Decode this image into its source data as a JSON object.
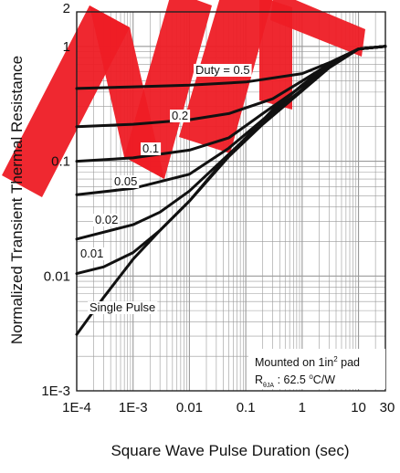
{
  "chart_data": {
    "type": "line",
    "xlabel": "Square Wave Pulse Duration (sec)",
    "ylabel": "Normalized Transient Thermal Resistance",
    "x_scale": "log",
    "y_scale": "log",
    "xlim": [
      0.0001,
      30
    ],
    "ylim": [
      0.001,
      2
    ],
    "grid": true,
    "x_ticks": [
      {
        "value": 0.0001,
        "label": "1E-4"
      },
      {
        "value": 0.001,
        "label": "1E-3"
      },
      {
        "value": 0.01,
        "label": "0.01"
      },
      {
        "value": 0.1,
        "label": "0.1"
      },
      {
        "value": 1,
        "label": "1"
      },
      {
        "value": 10,
        "label": "10"
      },
      {
        "value": 30,
        "label": "30"
      }
    ],
    "y_ticks": [
      {
        "value": 0.001,
        "label": "1E-3"
      },
      {
        "value": 0.01,
        "label": "0.01"
      },
      {
        "value": 0.1,
        "label": "0.1"
      },
      {
        "value": 1,
        "label": "1"
      },
      {
        "value": 2,
        "label": "2"
      }
    ],
    "series": [
      {
        "name": "Duty = 0.5",
        "x": [
          0.0001,
          0.001,
          0.01,
          0.1,
          1,
          3,
          10,
          30
        ],
        "y": [
          0.43,
          0.445,
          0.46,
          0.49,
          0.58,
          0.72,
          0.95,
          1.0
        ]
      },
      {
        "name": "0.2",
        "x": [
          0.0001,
          0.001,
          0.01,
          0.05,
          0.3,
          1,
          3,
          10,
          30
        ],
        "y": [
          0.2,
          0.21,
          0.23,
          0.26,
          0.35,
          0.5,
          0.7,
          0.95,
          1.0
        ]
      },
      {
        "name": "0.1",
        "x": [
          0.0001,
          0.001,
          0.01,
          0.05,
          0.2,
          1,
          3,
          10,
          30
        ],
        "y": [
          0.1,
          0.107,
          0.125,
          0.16,
          0.26,
          0.45,
          0.68,
          0.95,
          1.0
        ]
      },
      {
        "name": "0.05",
        "x": [
          0.0001,
          0.001,
          0.01,
          0.05,
          0.2,
          1,
          3,
          10,
          30
        ],
        "y": [
          0.051,
          0.058,
          0.077,
          0.13,
          0.23,
          0.42,
          0.66,
          0.95,
          1.0
        ]
      },
      {
        "name": "0.02",
        "x": [
          0.0001,
          0.001,
          0.003,
          0.01,
          0.05,
          0.2,
          1,
          3,
          10,
          30
        ],
        "y": [
          0.021,
          0.028,
          0.036,
          0.055,
          0.115,
          0.22,
          0.42,
          0.66,
          0.95,
          1.0
        ]
      },
      {
        "name": "0.01",
        "x": [
          0.0001,
          0.0003,
          0.001,
          0.003,
          0.01,
          0.05,
          0.2,
          1,
          3,
          10,
          30
        ],
        "y": [
          0.0105,
          0.012,
          0.016,
          0.025,
          0.045,
          0.11,
          0.21,
          0.41,
          0.65,
          0.95,
          1.0
        ]
      },
      {
        "name": "Single Pulse",
        "x": [
          0.0001,
          0.0003,
          0.001,
          0.003,
          0.01,
          0.03,
          0.1,
          0.3,
          1,
          3,
          10,
          30
        ],
        "y": [
          0.0031,
          0.0065,
          0.014,
          0.025,
          0.045,
          0.085,
          0.16,
          0.28,
          0.46,
          0.7,
          0.95,
          1.0
        ]
      }
    ],
    "curve_labels": [
      {
        "series": "Duty = 0.5",
        "text": "Duty = 0.5"
      },
      {
        "series": "0.2",
        "text": "0.2"
      },
      {
        "series": "0.1",
        "text": "0.1"
      },
      {
        "series": "0.05",
        "text": "0.05"
      },
      {
        "series": "0.02",
        "text": "0.02"
      },
      {
        "series": "0.01",
        "text": "0.01"
      },
      {
        "series": "Single Pulse",
        "text": "Single Pulse"
      }
    ],
    "annotation": {
      "line1_prefix": "Mounted on 1in",
      "line1_sup": "2",
      "line1_suffix": " pad",
      "line2_main": "R",
      "line2_sub": "θJA",
      "line2_value": " : 62.5 ",
      "line2_sup": "o",
      "line2_unit": "C/W"
    },
    "watermark_color": "#ee1c25",
    "line_color": "#111111",
    "grid_color": "#9a9a9a"
  }
}
